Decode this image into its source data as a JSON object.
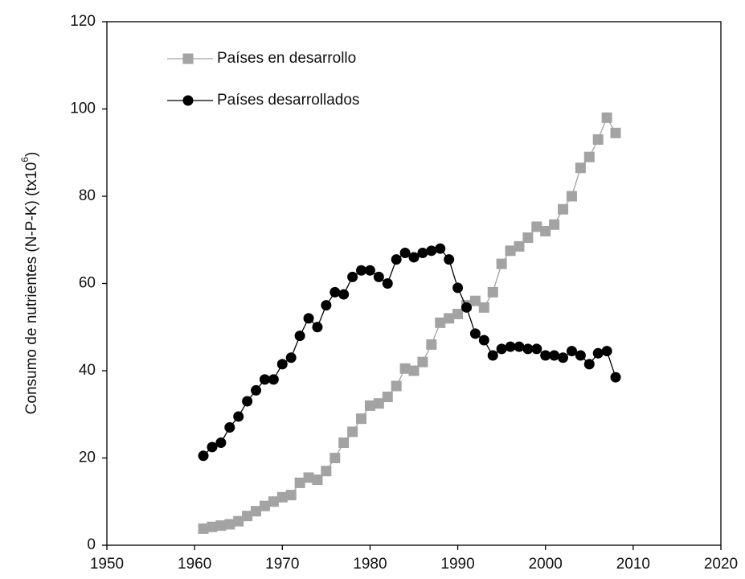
{
  "chart_data": {
    "type": "line",
    "ylabel": [
      "Consumo de nutrientes (N-P-K) (tx10",
      "6",
      ")"
    ],
    "x": [
      1961,
      1962,
      1963,
      1964,
      1965,
      1966,
      1967,
      1968,
      1969,
      1970,
      1971,
      1972,
      1973,
      1974,
      1975,
      1976,
      1977,
      1978,
      1979,
      1980,
      1981,
      1982,
      1983,
      1984,
      1985,
      1986,
      1987,
      1988,
      1989,
      1990,
      1991,
      1992,
      1993,
      1994,
      1995,
      1996,
      1997,
      1998,
      1999,
      2000,
      2001,
      2002,
      2003,
      2004,
      2005,
      2006,
      2007,
      2008
    ],
    "series": [
      {
        "name": "Países en desarrollo",
        "color": "#a3a3a3",
        "marker": "square",
        "values": [
          3.8,
          4.2,
          4.5,
          4.8,
          5.5,
          6.7,
          7.8,
          9.0,
          10.0,
          11.0,
          11.5,
          14.3,
          15.5,
          15.0,
          17.0,
          20.0,
          23.5,
          26.0,
          29.0,
          32.0,
          32.5,
          34.0,
          36.5,
          40.5,
          40.0,
          42.0,
          46.0,
          51.0,
          52.0,
          53.0,
          55.0,
          56.0,
          54.5,
          58.0,
          64.5,
          67.5,
          68.5,
          70.5,
          73.0,
          72.0,
          73.5,
          77.0,
          80.0,
          86.5,
          89.0,
          93.0,
          98.0,
          94.5
        ]
      },
      {
        "name": "Países desarrollados",
        "color": "#000000",
        "marker": "circle",
        "values": [
          20.5,
          22.5,
          23.5,
          27.0,
          29.5,
          33.0,
          35.5,
          38.0,
          38.0,
          41.5,
          43.0,
          48.0,
          52.0,
          50.0,
          55.0,
          58.0,
          57.5,
          61.5,
          63.0,
          63.0,
          61.5,
          60.0,
          65.5,
          67.0,
          66.0,
          67.0,
          67.5,
          68.0,
          65.5,
          59.0,
          54.5,
          48.5,
          47.0,
          43.5,
          45.0,
          45.5,
          45.5,
          45.0,
          45.0,
          43.5,
          43.5,
          43.0,
          44.5,
          43.5,
          41.5,
          44.0,
          44.5,
          38.5
        ]
      }
    ],
    "xlim": [
      1950,
      2020
    ],
    "xticks": [
      1950,
      1960,
      1970,
      1980,
      1990,
      2000,
      2010,
      2020
    ],
    "ylim": [
      0,
      120
    ],
    "yticks": [
      0,
      20,
      40,
      60,
      80,
      100,
      120
    ],
    "legend": "upper-left"
  }
}
